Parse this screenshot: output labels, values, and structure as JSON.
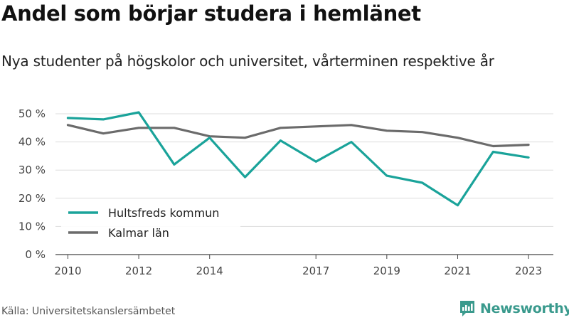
{
  "header": {
    "title": "Andel som börjar studera i hemlänet",
    "subtitle": "Nya studenter på högskolor och universitet, vårterminen respektive år"
  },
  "footer": {
    "source": "Källa: Universitetskanslersämbetet",
    "brand": "Newsworthy",
    "brand_icon": "newsworthy-logo-icon"
  },
  "colors": {
    "hultsfred": "#1aa39a",
    "kalmar": "#6b6b6b",
    "grid": "#dddddd",
    "brand": "#3a9a8d"
  },
  "chart_data": {
    "type": "line",
    "x": [
      2010,
      2011,
      2012,
      2013,
      2014,
      2015,
      2016,
      2017,
      2018,
      2019,
      2020,
      2021,
      2022,
      2023
    ],
    "x_tick_labels": [
      "2010",
      "2012",
      "2014",
      "2017",
      "2019",
      "2021",
      "2023"
    ],
    "x_tick_values": [
      2010,
      2012,
      2014,
      2017,
      2019,
      2021,
      2023
    ],
    "y_tick_labels": [
      "0 %",
      "10 %",
      "20 %",
      "30 %",
      "40 %",
      "50 %"
    ],
    "y_tick_values": [
      0,
      10,
      20,
      30,
      40,
      50
    ],
    "ylim": [
      0,
      50
    ],
    "grid": true,
    "legend_position": "bottom-left",
    "series": [
      {
        "name": "Hultsfreds kommun",
        "color": "#1aa39a",
        "values": [
          48.5,
          48,
          50.5,
          32,
          41.5,
          27.5,
          40.5,
          33,
          40,
          28,
          25.5,
          17.5,
          36.5,
          34.5
        ]
      },
      {
        "name": "Kalmar län",
        "color": "#6b6b6b",
        "values": [
          46,
          43,
          45,
          45,
          42,
          41.5,
          45,
          45.5,
          46,
          44,
          43.5,
          41.5,
          38.5,
          39
        ]
      }
    ]
  }
}
